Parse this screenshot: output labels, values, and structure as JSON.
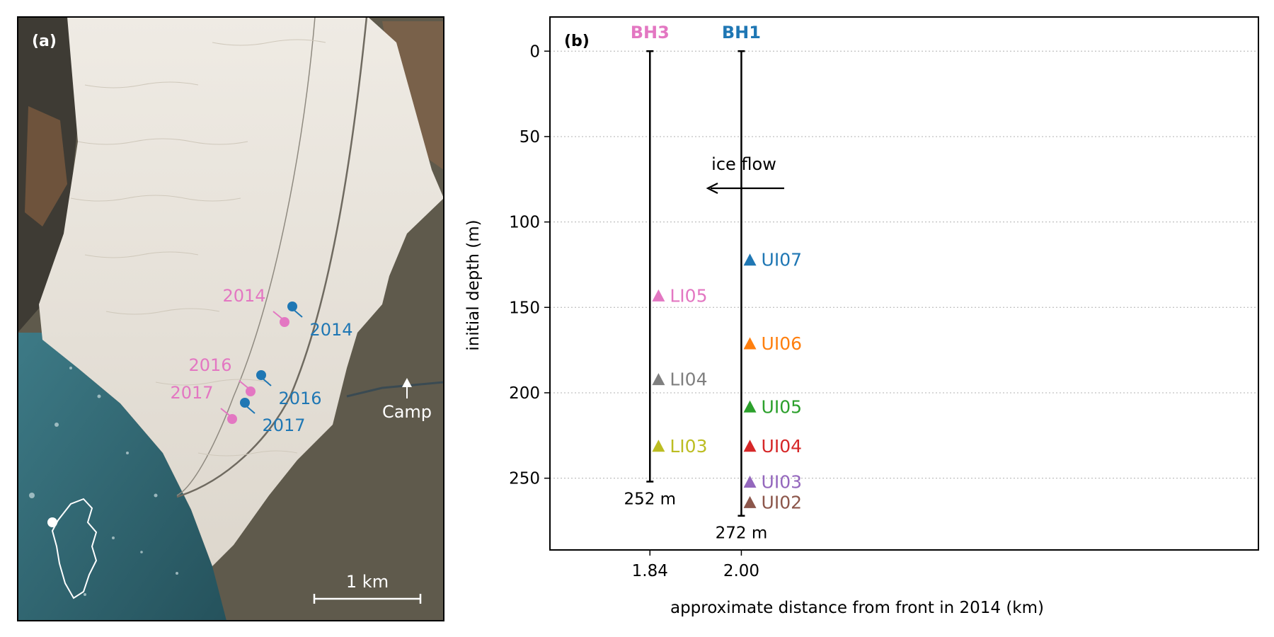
{
  "panel_a": {
    "label": "(a)",
    "pink_years": [
      "2014",
      "2016",
      "2017"
    ],
    "blue_years": [
      "2014",
      "2016",
      "2017"
    ],
    "camp_label": "Camp",
    "scalebar_label": "1 km"
  },
  "colors": {
    "BH3": "#e377c2",
    "BH1": "#1f77b4",
    "UI07": "#1f77b4",
    "UI06": "#ff7f0e",
    "UI05": "#2ca02c",
    "UI04": "#d62728",
    "UI03": "#9467bd",
    "UI02": "#8c564b",
    "LI05": "#e377c2",
    "LI04": "#7f7f7f",
    "LI03": "#bcbd22"
  },
  "chart_data": {
    "type": "scatter",
    "panel_label": "(b)",
    "xlabel": "approximate distance from front in 2014 (km)",
    "ylabel": "initial depth (m)",
    "xlim": [
      1.665,
      2.905
    ],
    "ylim": [
      292,
      -20
    ],
    "y_inverted": true,
    "grid": "horizontal dotted",
    "x_ticks": [
      1.84,
      2.0
    ],
    "y_ticks": [
      0,
      50,
      100,
      150,
      200,
      250
    ],
    "annotation": "ice flow",
    "boreholes": [
      {
        "name": "BH3",
        "x": 1.84,
        "depth": 252,
        "depth_label": "252 m"
      },
      {
        "name": "BH1",
        "x": 2.0,
        "depth": 272,
        "depth_label": "272 m"
      }
    ],
    "series": [
      {
        "name": "LI05",
        "borehole": "BH3",
        "x": 1.855,
        "y": 143
      },
      {
        "name": "LI04",
        "borehole": "BH3",
        "x": 1.855,
        "y": 192
      },
      {
        "name": "LI03",
        "borehole": "BH3",
        "x": 1.855,
        "y": 231
      },
      {
        "name": "UI07",
        "borehole": "BH1",
        "x": 2.015,
        "y": 122
      },
      {
        "name": "UI06",
        "borehole": "BH1",
        "x": 2.015,
        "y": 171
      },
      {
        "name": "UI05",
        "borehole": "BH1",
        "x": 2.015,
        "y": 208
      },
      {
        "name": "UI04",
        "borehole": "BH1",
        "x": 2.015,
        "y": 231
      },
      {
        "name": "UI03",
        "borehole": "BH1",
        "x": 2.015,
        "y": 252
      },
      {
        "name": "UI02",
        "borehole": "BH1",
        "x": 2.015,
        "y": 264
      }
    ]
  }
}
